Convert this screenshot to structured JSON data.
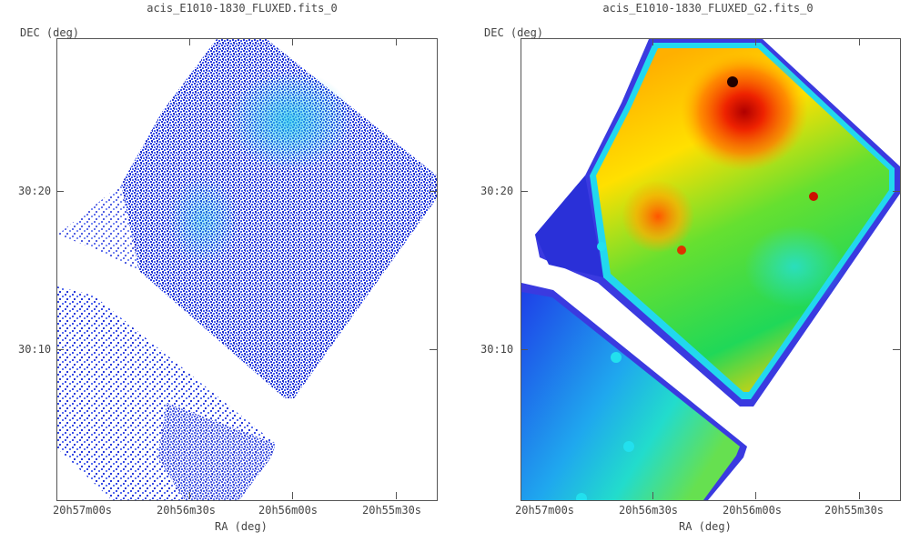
{
  "panels": [
    {
      "title": "acis_E1010-1830_FLUXED.fits_0",
      "dec_label": "DEC (deg)",
      "ra_label": "RA (deg)",
      "dec_ticks": [
        "30:20",
        "30:10"
      ],
      "ra_ticks": [
        "20h57m00s",
        "20h56m30s",
        "20h56m00s",
        "20h55m30s"
      ]
    },
    {
      "title": "acis_E1010-1830_FLUXED_G2.fits_0",
      "dec_label": "DEC (deg)",
      "ra_label": "RA (deg)",
      "dec_ticks": [
        "30:20",
        "30:10"
      ],
      "ra_ticks": [
        "20h57m00s",
        "20h56m30s",
        "20h56m00s",
        "20h55m30s"
      ]
    }
  ],
  "colors": {
    "raw_background": "#ffffff",
    "raw_pixels": "#2a3bd8",
    "raw_bright": "#24c4e8",
    "smooth_low": "#1a1ad0",
    "smooth_mid": "#22dd33",
    "smooth_high": "#ee2200"
  }
}
